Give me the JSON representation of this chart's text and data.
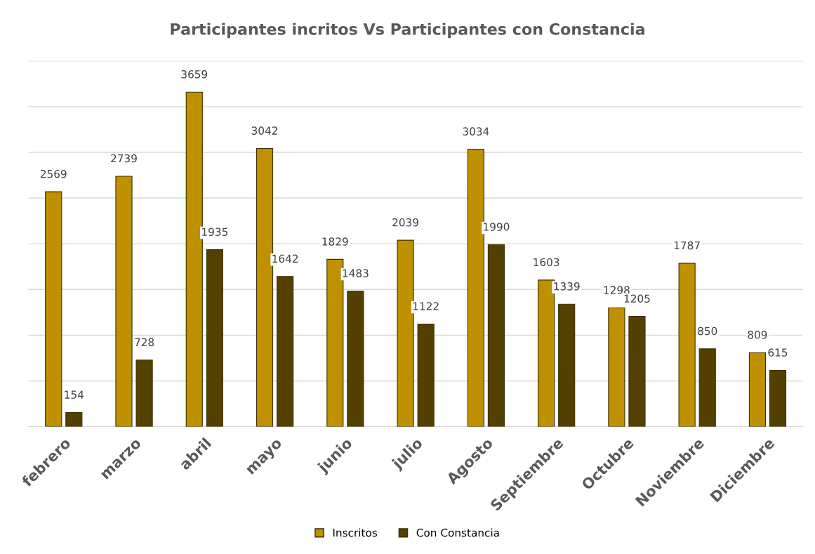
{
  "chart_data": {
    "type": "bar",
    "title": "Participantes incritos Vs Participantes con Constancia",
    "categories": [
      "febrero",
      "marzo",
      "abril",
      "mayo",
      "junio",
      "julio",
      "Agosto",
      "Septiembre",
      "Octubre",
      "Noviembre",
      "Diciembre"
    ],
    "series": [
      {
        "name": "Inscritos",
        "color": "#bf9000",
        "values": [
          2569,
          2739,
          3659,
          3042,
          1829,
          2039,
          3034,
          1603,
          1298,
          1787,
          809
        ]
      },
      {
        "name": "Con Constancia",
        "color": "#544000",
        "values": [
          154,
          728,
          1935,
          1642,
          1483,
          1122,
          1990,
          1339,
          1205,
          850,
          615
        ]
      }
    ],
    "ylim": [
      0,
      4000
    ],
    "yticks": [
      {
        "value": 0,
        "label": null
      },
      {
        "value": 500,
        "label": null
      },
      {
        "value": 1000,
        "label": null
      },
      {
        "value": 1500,
        "label": null
      },
      {
        "value": 2000,
        "label": null
      },
      {
        "value": 2500,
        "label": null
      },
      {
        "value": 3000,
        "label": null
      },
      {
        "value": 3500,
        "label": null
      },
      {
        "value": 4000,
        "label": null
      }
    ],
    "tick_labels": "x",
    "grid": "y",
    "legend": "bottom",
    "data_labels": true
  }
}
